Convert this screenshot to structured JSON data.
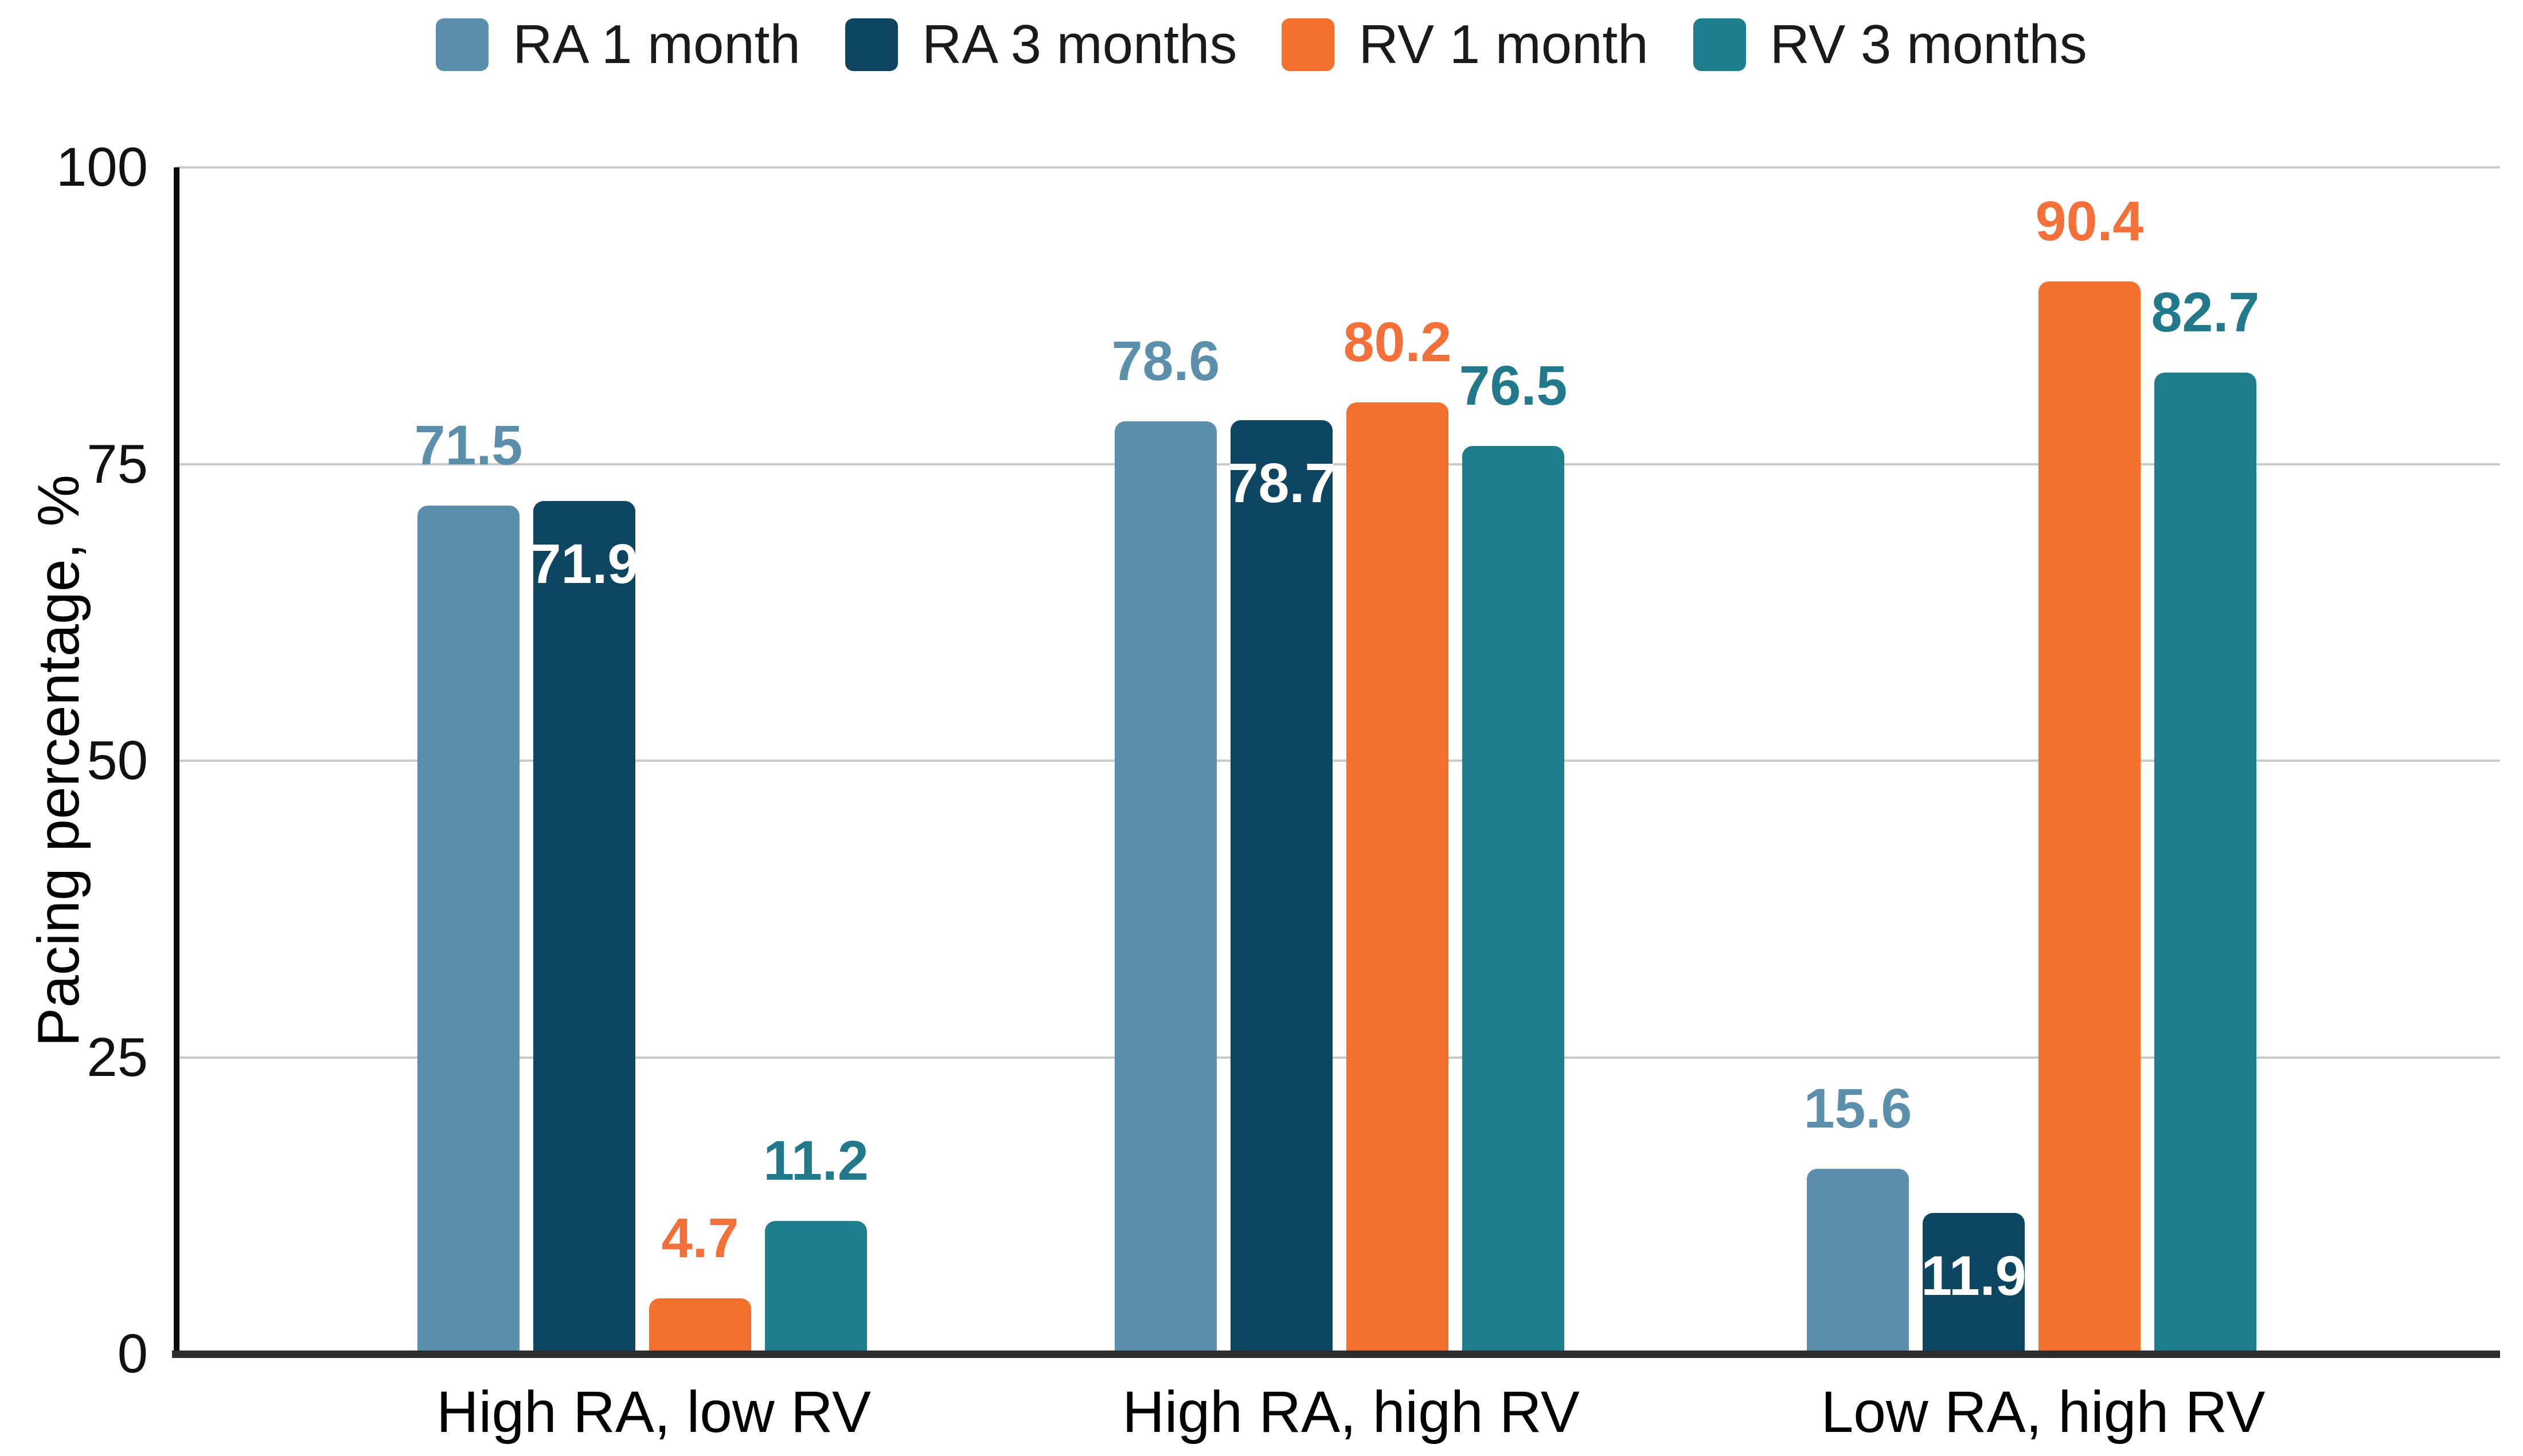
{
  "chart_data": {
    "type": "bar",
    "title": "",
    "categories": [
      "High RA, low RV",
      "High RA, high RV",
      "Low RA, high RV"
    ],
    "series": [
      {
        "name": "RA 1 month",
        "color": "#5B8FAC",
        "label_color": "#5B8FAC",
        "value_label_placement": "above",
        "values": [
          71.5,
          78.6,
          15.6
        ]
      },
      {
        "name": "RA 3 months",
        "color": "#0E4561",
        "label_color": "#FFFFFF",
        "value_label_placement": "inside",
        "values": [
          71.9,
          78.7,
          11.9
        ]
      },
      {
        "name": "RV 1 month",
        "color": "#F4702F",
        "label_color": "#F4703B",
        "value_label_placement": "above",
        "values": [
          4.7,
          80.2,
          90.4
        ]
      },
      {
        "name": "RV 3 months",
        "color": "#1F7E8C",
        "label_color": "#21798B",
        "value_label_placement": "above",
        "values": [
          11.2,
          76.5,
          82.7
        ]
      }
    ],
    "xlabel": "",
    "ylabel": "Pacing percentage, %",
    "yticks": [
      0,
      25,
      50,
      75,
      100
    ],
    "ylim": [
      0,
      100
    ],
    "grid": true,
    "legend_position": "top",
    "axis_colors": {
      "gridline": "#c9c9c9",
      "baseline": "#2d2d2d",
      "y_axis_line": "#0a0a0a",
      "text": "#000000"
    }
  }
}
